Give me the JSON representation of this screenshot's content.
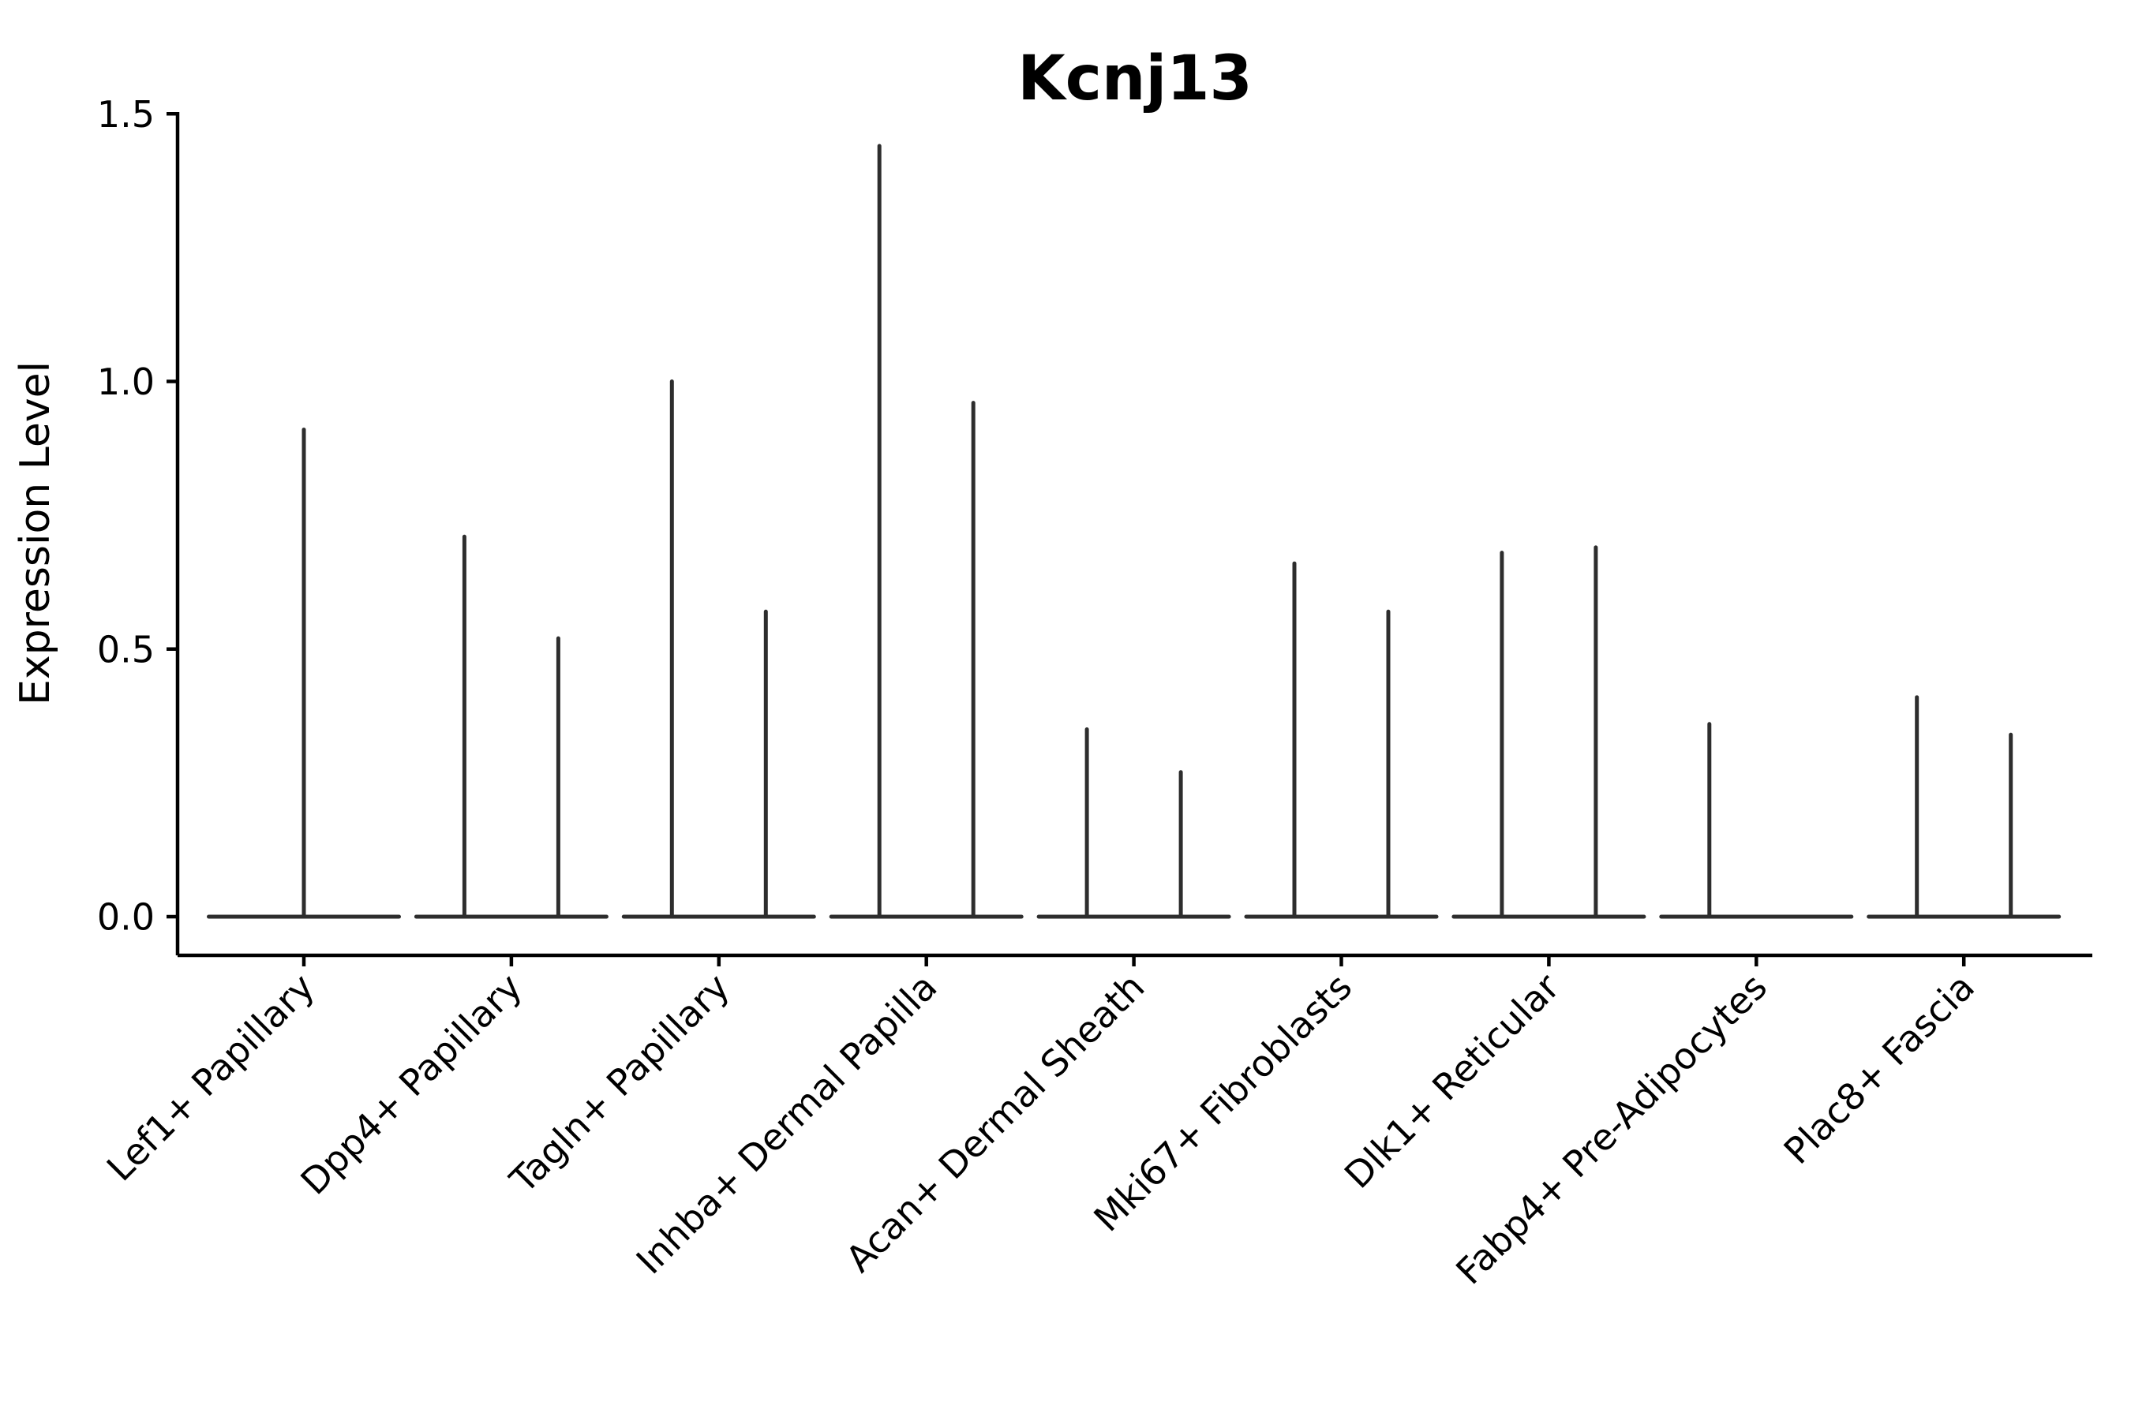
{
  "chart_data": {
    "type": "violin",
    "title": "Kcnj13",
    "ylabel": "Expression Level",
    "xlabel": "",
    "grid": false,
    "legend": "none",
    "background_color": "#ffffff",
    "violin_color": "#2d2d2d",
    "axis_color": "#000000",
    "ylim": [
      -0.072,
      1.503
    ],
    "ytick_labels": [
      "0.0",
      "0.5",
      "1.0",
      "1.5"
    ],
    "ytick_values": [
      0.0,
      0.5,
      1.0,
      1.5
    ],
    "categories": [
      "Lef1+ Papillary",
      "Dpp4+ Papillary",
      "Tagln+ Papillary",
      "Inhba+ Dermal Papilla",
      "Acan+ Dermal Sheath",
      "Mki67+ Fibroblasts",
      "Dlk1+ Reticular",
      "Fabp4+ Pre-Adipocytes",
      "Plac8+ Fascia"
    ],
    "violins": [
      {
        "category": "Lef1+ Papillary",
        "groups": [
          {
            "position": "center",
            "max_expression": 0.91
          }
        ]
      },
      {
        "category": "Dpp4+ Papillary",
        "groups": [
          {
            "position": "left",
            "max_expression": 0.71
          },
          {
            "position": "right",
            "max_expression": 0.52
          }
        ]
      },
      {
        "category": "Tagln+ Papillary",
        "groups": [
          {
            "position": "left",
            "max_expression": 1.0
          },
          {
            "position": "right",
            "max_expression": 0.57
          }
        ]
      },
      {
        "category": "Inhba+ Dermal Papilla",
        "groups": [
          {
            "position": "left",
            "max_expression": 1.44
          },
          {
            "position": "right",
            "max_expression": 0.96
          }
        ]
      },
      {
        "category": "Acan+ Dermal Sheath",
        "groups": [
          {
            "position": "left",
            "max_expression": 0.35
          },
          {
            "position": "right",
            "max_expression": 0.27
          }
        ]
      },
      {
        "category": "Mki67+ Fibroblasts",
        "groups": [
          {
            "position": "left",
            "max_expression": 0.66
          },
          {
            "position": "right",
            "max_expression": 0.57
          }
        ]
      },
      {
        "category": "Dlk1+ Reticular",
        "groups": [
          {
            "position": "left",
            "max_expression": 0.68
          },
          {
            "position": "right",
            "max_expression": 0.69
          }
        ]
      },
      {
        "category": "Fabp4+ Pre-Adipocytes",
        "groups": [
          {
            "position": "left",
            "max_expression": 0.36
          },
          {
            "position": "right",
            "max_expression": 0.0
          }
        ]
      },
      {
        "category": "Plac8+ Fascia",
        "groups": [
          {
            "position": "left",
            "max_expression": 0.41
          },
          {
            "position": "right",
            "max_expression": 0.34
          }
        ]
      }
    ]
  }
}
